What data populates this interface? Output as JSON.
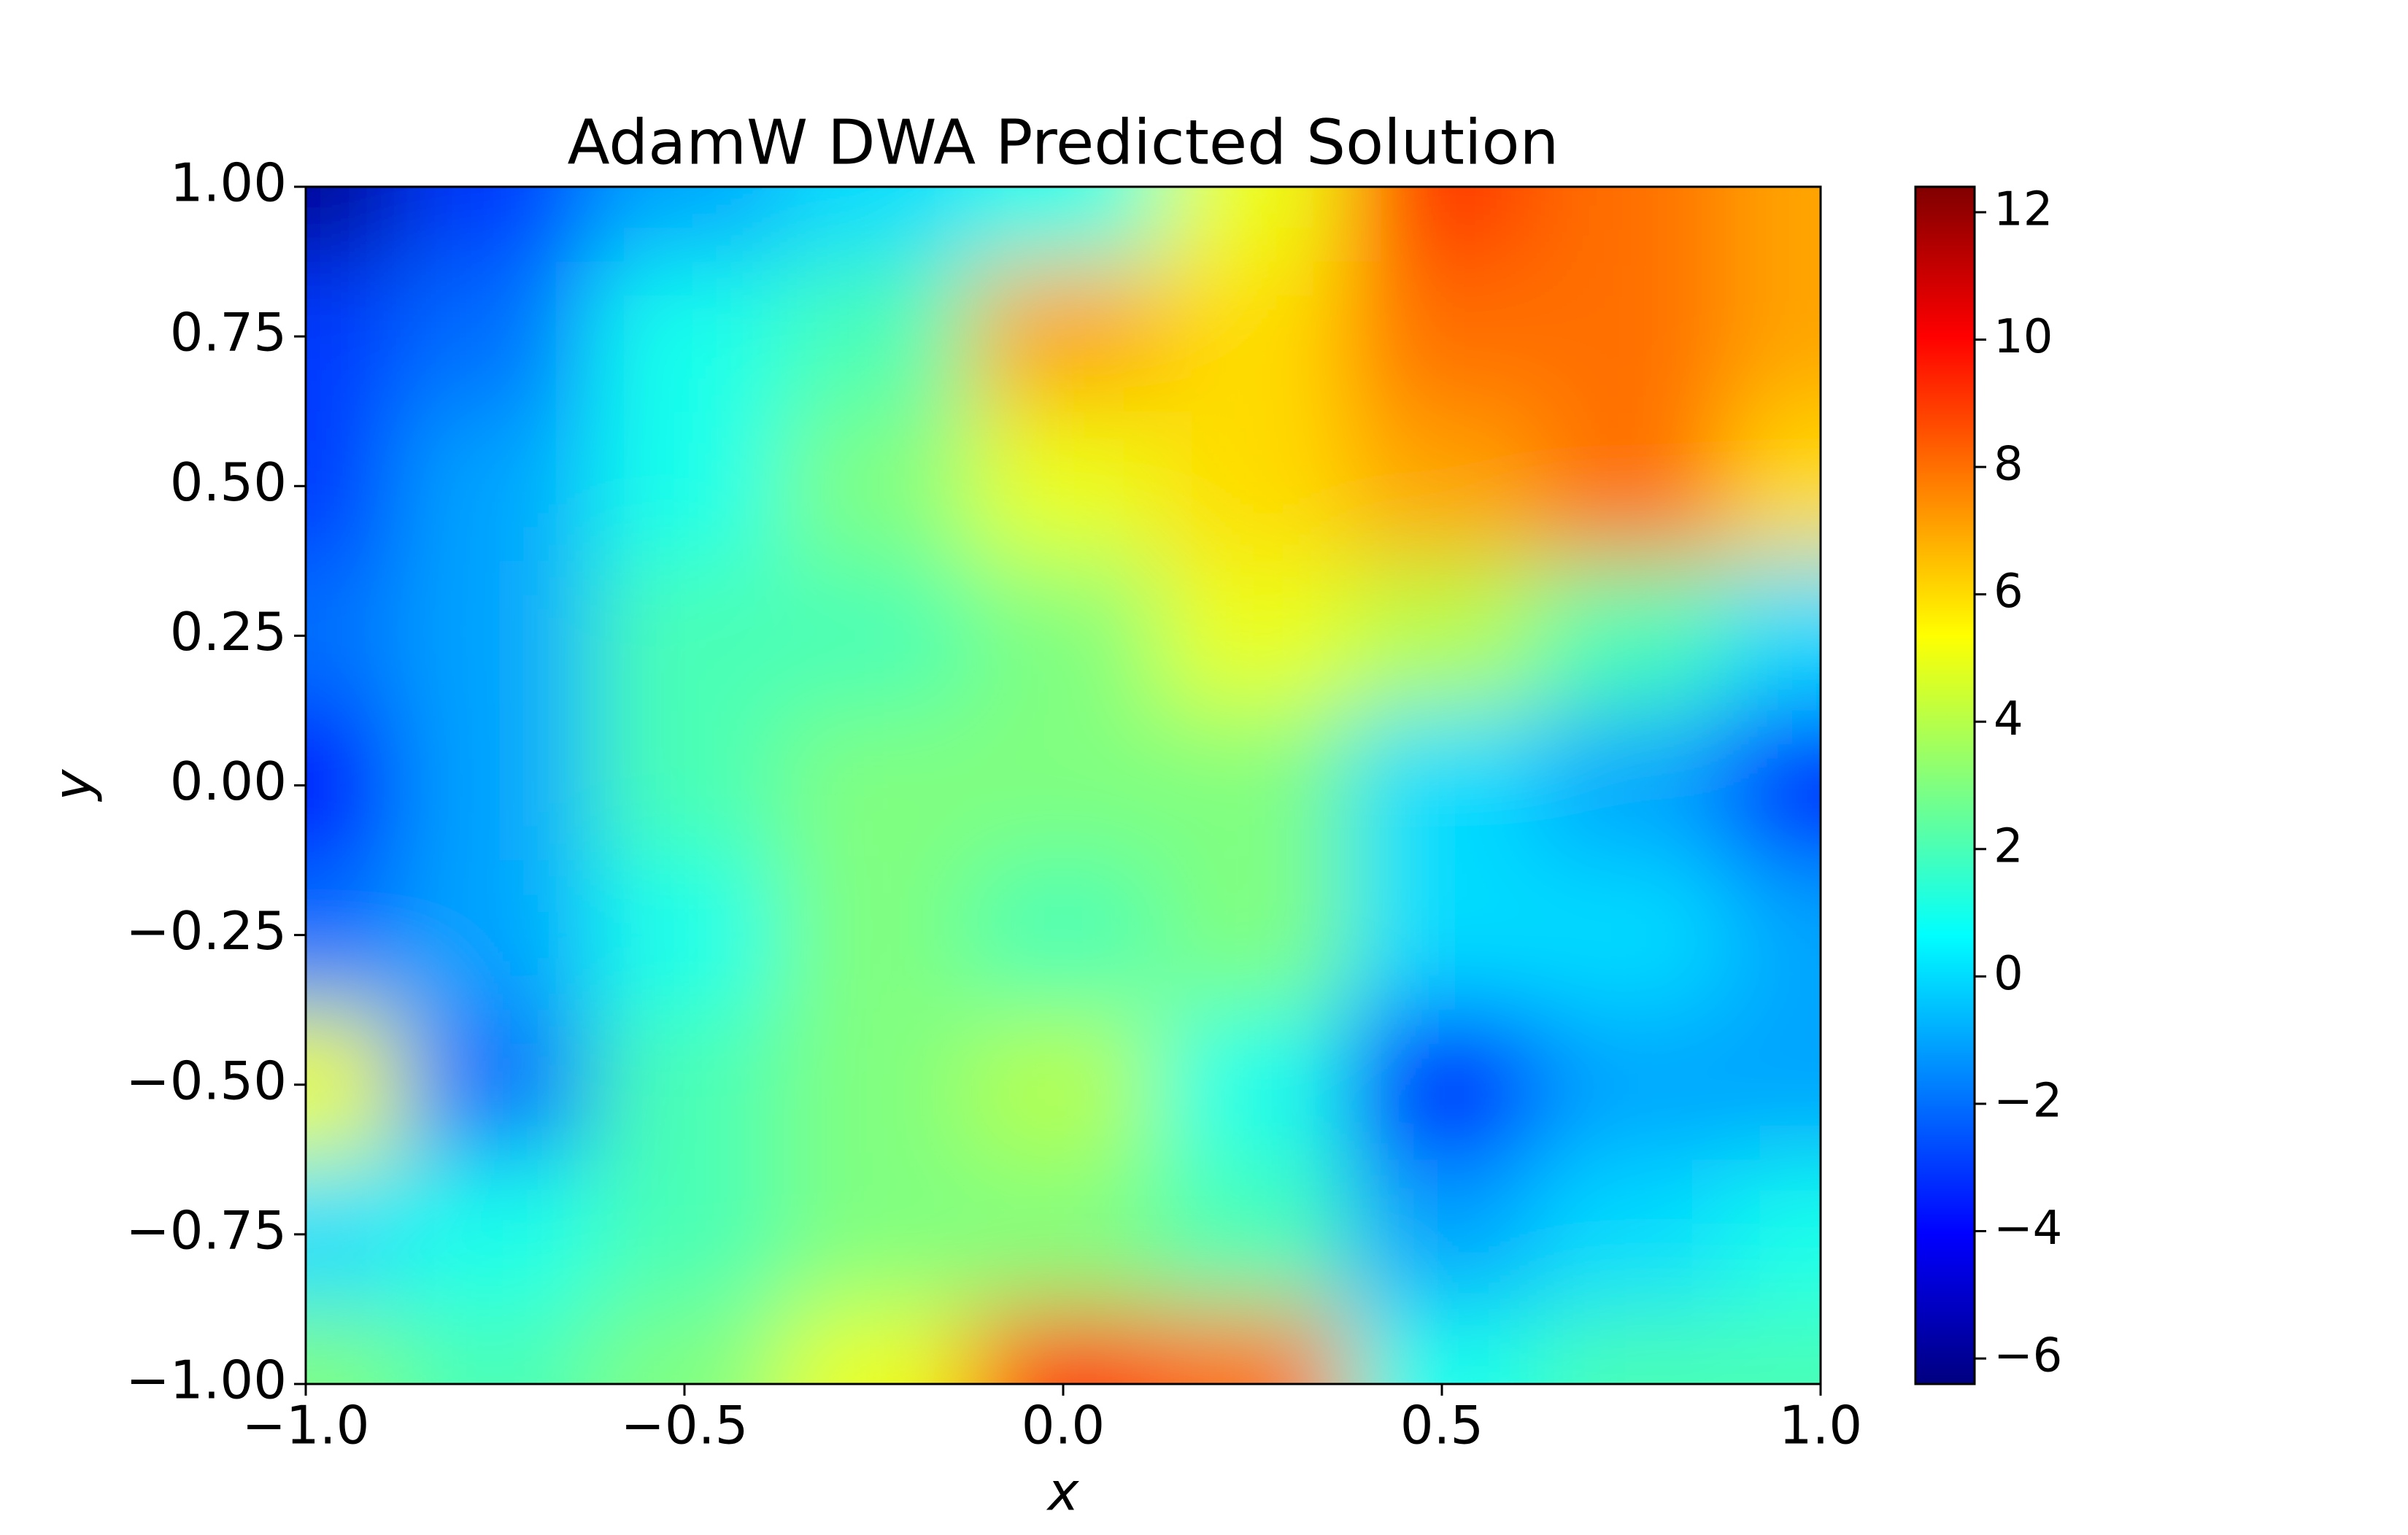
{
  "chart_data": {
    "type": "contourf",
    "title": "AdamW DWA Predicted Solution",
    "x_label": "x",
    "y_label": "y",
    "x": [
      -1,
      -0.75,
      -0.5,
      -0.25,
      0,
      0.25,
      0.5,
      0.75,
      1
    ],
    "y": [
      -1,
      -0.75,
      -0.5,
      -0.25,
      0,
      0.25,
      0.5,
      0.75,
      1
    ],
    "z": [
      [
        3,
        2,
        3,
        5,
        9,
        8,
        1,
        2,
        2
      ],
      [
        0,
        1,
        2,
        3,
        3,
        2,
        -1,
        0,
        1
      ],
      [
        5,
        -2,
        2,
        3,
        4,
        1,
        -4,
        -1,
        -1
      ],
      [
        -2,
        -1,
        1,
        3,
        2,
        3,
        0,
        0,
        -1
      ],
      [
        -4,
        -1,
        2,
        3,
        3,
        3,
        0,
        -1,
        -4
      ],
      [
        -2,
        -1,
        2,
        2,
        3,
        5,
        4,
        2,
        0
      ],
      [
        -3,
        -1,
        1,
        3,
        5,
        6,
        7,
        8,
        6
      ],
      [
        -3,
        -2,
        1,
        2,
        7,
        6,
        8,
        8,
        7
      ],
      [
        -6,
        -3,
        -1,
        0,
        1,
        5,
        9,
        8,
        7
      ]
    ],
    "colormap": "jet",
    "xlim": [
      -1,
      1
    ],
    "ylim": [
      -1,
      1
    ],
    "zlim": [
      -6.4,
      12.4
    ],
    "xticks": [
      {
        "value": -1,
        "label": "−1.0"
      },
      {
        "value": -0.5,
        "label": "−0.5"
      },
      {
        "value": 0,
        "label": "0.0"
      },
      0.5,
      {
        "value": 1,
        "label": "1.0"
      }
    ],
    "yticks": [
      {
        "value": -1,
        "label": "−1.00"
      },
      {
        "value": -0.75,
        "label": "−0.75"
      },
      {
        "value": -0.5,
        "label": "−0.50"
      },
      {
        "value": -0.25,
        "label": "−0.25"
      },
      {
        "value": 0,
        "label": "0.00"
      },
      {
        "value": 0.25,
        "label": "0.25"
      },
      {
        "value": 0.5,
        "label": "0.50"
      },
      {
        "value": 0.75,
        "label": "0.75"
      },
      {
        "value": 1,
        "label": "1.00"
      }
    ],
    "zticks": [
      {
        "value": -6,
        "label": "−6"
      },
      {
        "value": -4,
        "label": "−4"
      },
      {
        "value": -2,
        "label": "−2"
      },
      0,
      2,
      4,
      6,
      8,
      10,
      12
    ]
  }
}
